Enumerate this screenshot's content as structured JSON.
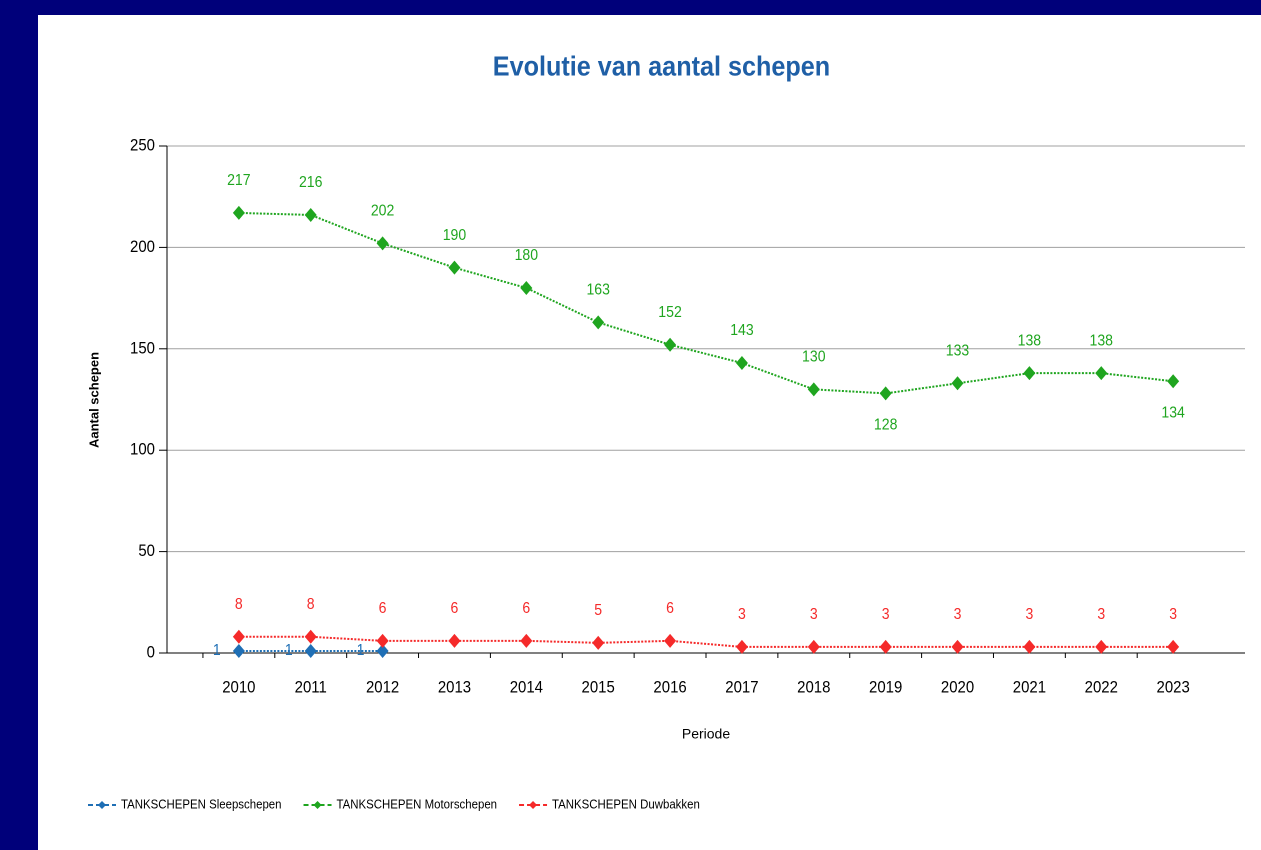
{
  "chart_data": {
    "type": "line",
    "title": "Evolutie van aantal schepen",
    "x_label": "Periode",
    "y_label": "Aantal schepen",
    "categories": [
      "2010",
      "2011",
      "2012",
      "2013",
      "2014",
      "2015",
      "2016",
      "2017",
      "2018",
      "2019",
      "2020",
      "2021",
      "2022",
      "2023"
    ],
    "series": [
      {
        "name": "TANKSCHEPEN Sleepschepen",
        "color": "#1f6fb5",
        "values": [
          1,
          1,
          1,
          null,
          null,
          null,
          null,
          null,
          null,
          null,
          null,
          null,
          null,
          null
        ]
      },
      {
        "name": "TANKSCHEPEN Motorschepen",
        "color": "#1fa51f",
        "values": [
          217,
          216,
          202,
          190,
          180,
          163,
          152,
          143,
          130,
          128,
          133,
          138,
          138,
          134
        ]
      },
      {
        "name": "TANKSCHEPEN Duwbakken",
        "color": "#f52a2a",
        "values": [
          8,
          8,
          6,
          6,
          6,
          5,
          6,
          3,
          3,
          3,
          3,
          3,
          3,
          3
        ]
      }
    ],
    "ylim": [
      0,
      250
    ],
    "yticks": [
      0,
      50,
      100,
      150,
      200,
      250
    ],
    "grid": true,
    "legend": "bottom"
  }
}
